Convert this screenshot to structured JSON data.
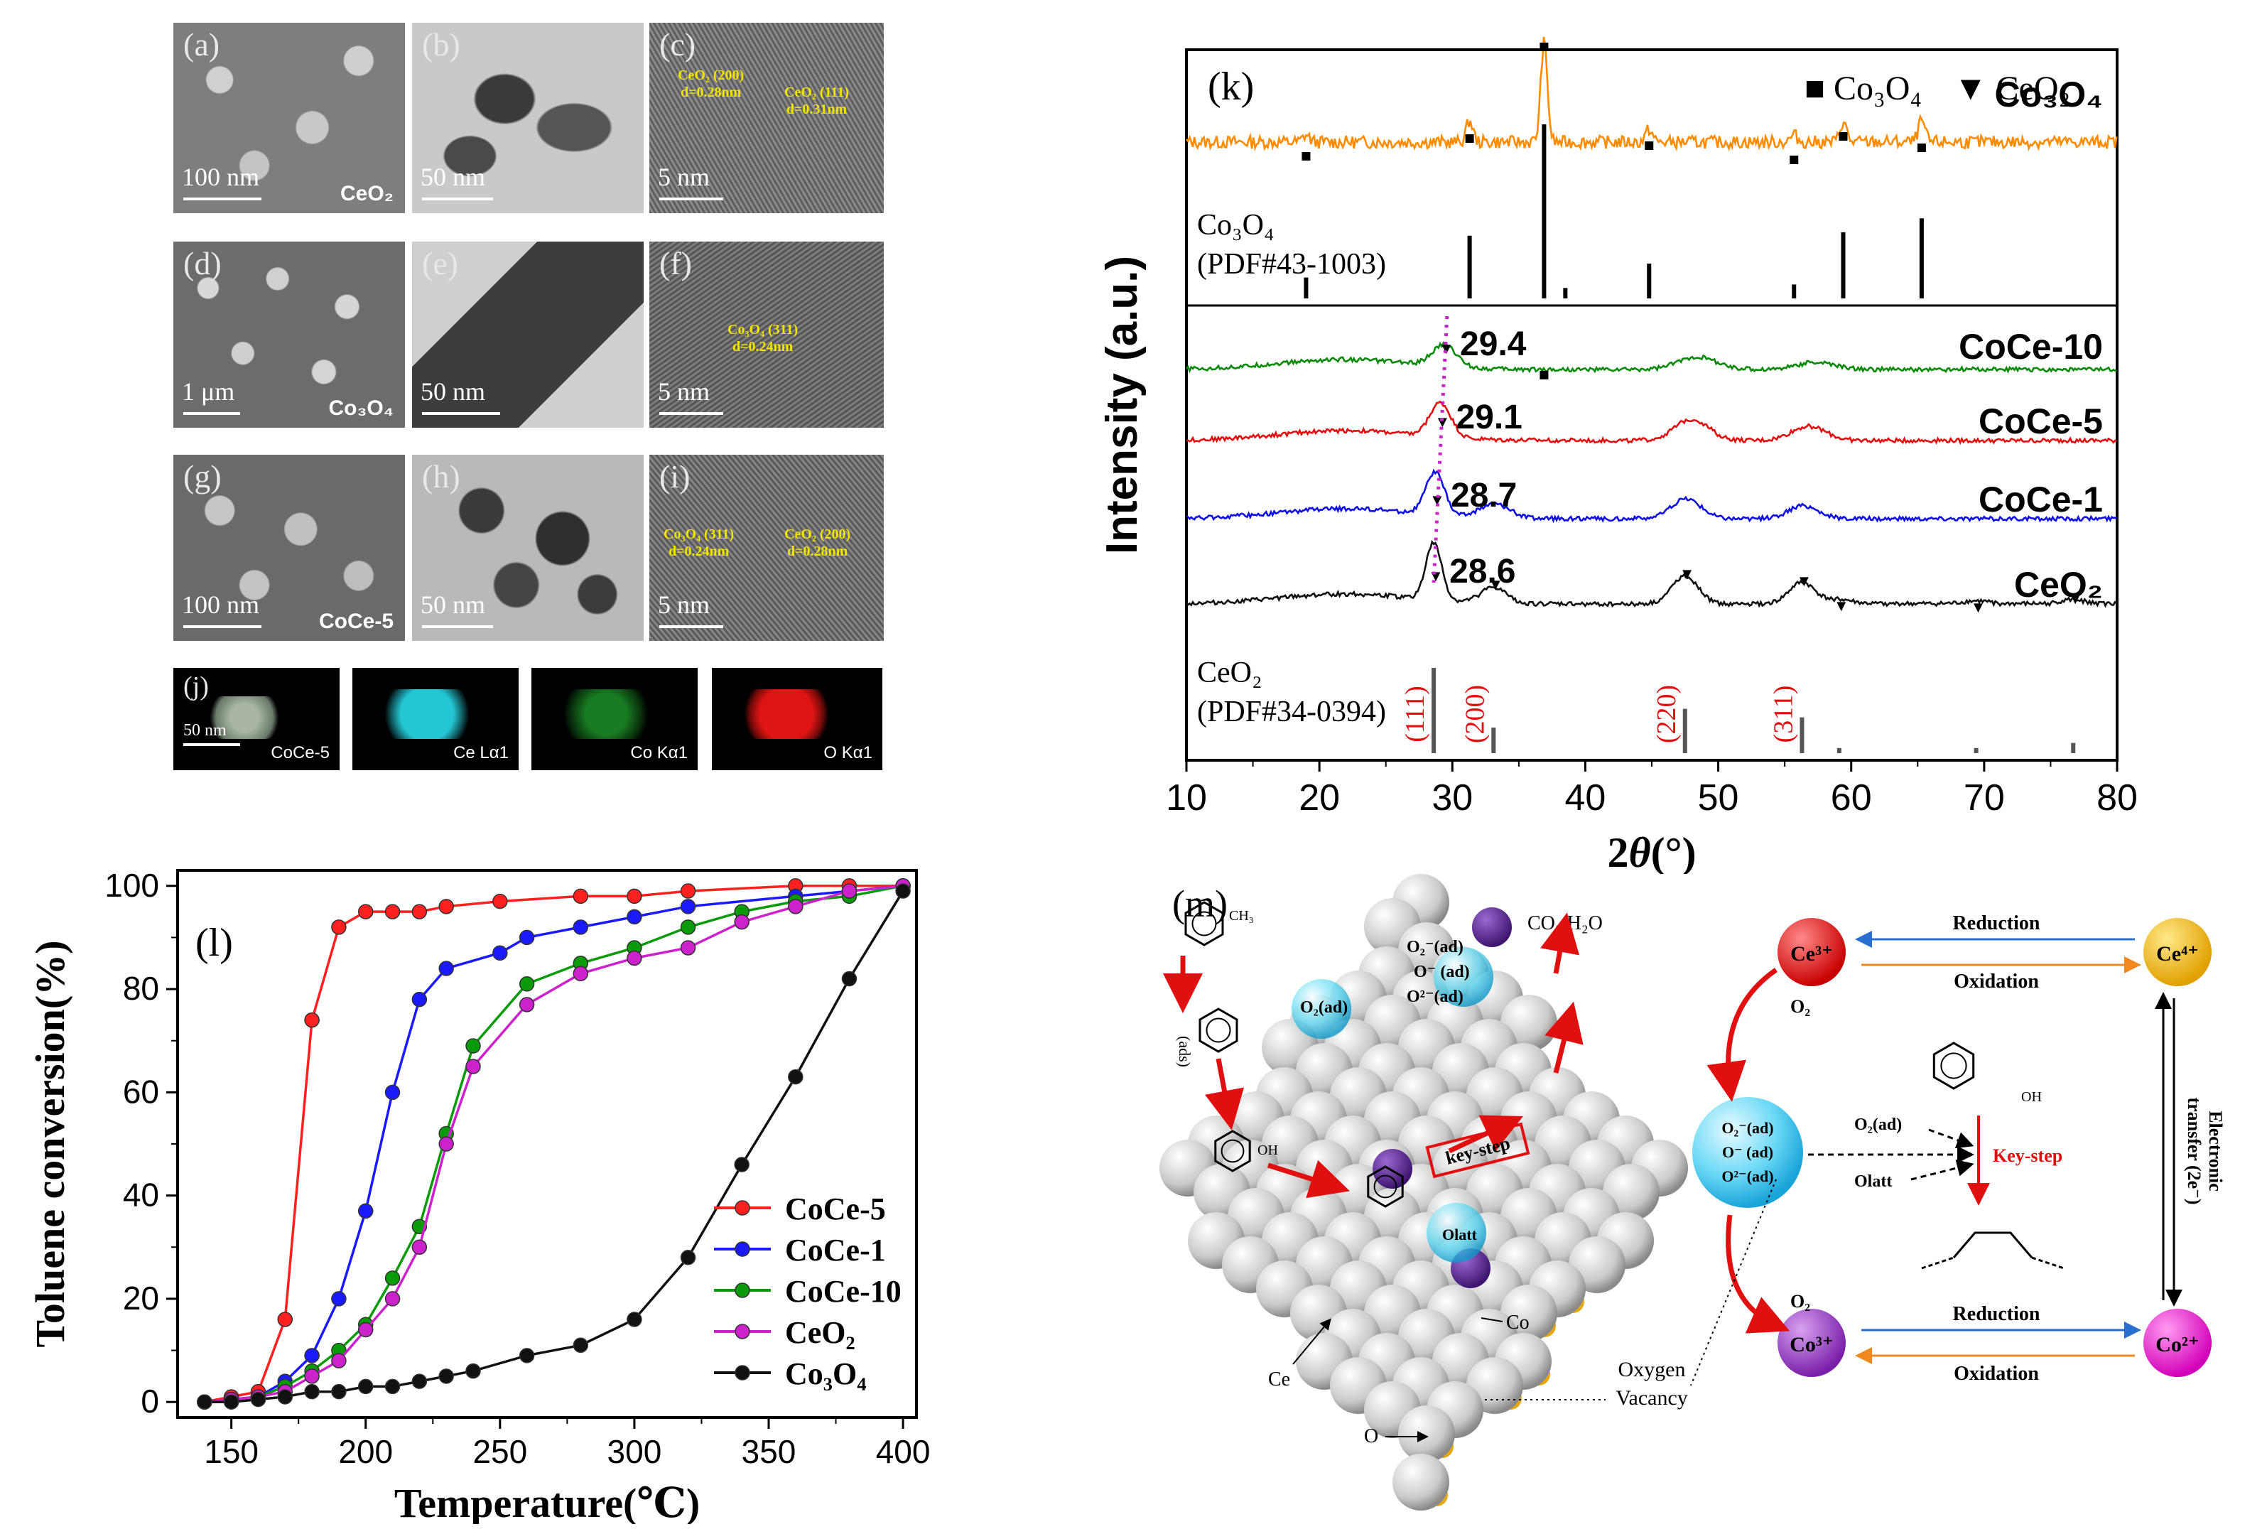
{
  "panels": {
    "tem": [
      {
        "label": "(a)",
        "scale": "100 nm",
        "sample": "CeO₂"
      },
      {
        "label": "(b)",
        "scale": "50 nm"
      },
      {
        "label": "(c)",
        "scale": "5 nm",
        "ann1": "CeO₂ (200)",
        "ann1d": "d=0.28nm",
        "ann2": "CeO₂ (111)",
        "ann2d": "d=0.31nm"
      },
      {
        "label": "(d)",
        "scale": "1 μm",
        "sample": "Co₃O₄"
      },
      {
        "label": "(e)",
        "scale": "50 nm"
      },
      {
        "label": "(f)",
        "scale": "5 nm",
        "ann1": "Co₃O₄ (311)",
        "ann1d": "d=0.24nm"
      },
      {
        "label": "(g)",
        "scale": "100 nm",
        "sample": "CoCe-5"
      },
      {
        "label": "(h)",
        "scale": "50 nm"
      },
      {
        "label": "(i)",
        "scale": "5 nm",
        "ann1": "Co₃O₄ (311)",
        "ann1d": "d=0.24nm",
        "ann2": "CeO₂ (200)",
        "ann2d": "d=0.28nm"
      }
    ],
    "eds": {
      "label": "(j)",
      "scale": "50 nm",
      "maps": [
        "CoCe-5",
        "Ce Lα1",
        "Co Kα1",
        "O Kα1"
      ],
      "colors": [
        "#8a9a88",
        "#24c6d2",
        "#1f9a2a",
        "#e01414"
      ]
    }
  },
  "xrd": {
    "label": "(k)",
    "ylabel": "Intensity (a.u.)",
    "xlabel": "2θ (°)",
    "xlabel_theta": "θ",
    "xlabel_unit": "(°)",
    "legend_co": "■ Co₃O₄",
    "legend_ce": "▼ CeO₂",
    "ref_co": "Co₃O₄",
    "ref_co_pdf": "(PDF#43-1003)",
    "ref_ce": "CeO₂",
    "ref_ce_pdf": "(PDF#34-0394)",
    "peaks_labels": [
      "29.4",
      "29.1",
      "28.7",
      "28.6"
    ],
    "hkl": [
      "(111)",
      "(200)",
      "(220)",
      "(311)"
    ]
  },
  "conversion_panel": {
    "label": "(l)"
  },
  "mechanism": {
    "label": "(m)",
    "products": "CO₂ H₂O",
    "ads": "(ads)",
    "species": [
      "O₂⁻(ad)",
      "O⁻ (ad)",
      "O²⁻(ad)"
    ],
    "o2ad": "O₂(ad)",
    "keystep": "key-step",
    "olatt": "Olatt",
    "ce": "Ce",
    "co": "Co",
    "o": "O",
    "vacancy1": "Oxygen",
    "vacancy2": "Vacancy",
    "cycle": {
      "ce3": "Ce³⁺",
      "ce4": "Ce⁴⁺",
      "co3": "Co³⁺",
      "co2": "Co²⁺",
      "reduction": "Reduction",
      "oxidation": "Oxidation",
      "o2": "O₂",
      "keystep": "Key-step",
      "o2ad": "O₂(ad)",
      "olatt": "Olatt",
      "transfer1": "Electronic",
      "transfer2": "transfer (2e⁻)",
      "sphere_species": [
        "O₂⁻(ad)",
        "O⁻ (ad)",
        "O²⁻(ad)"
      ]
    }
  },
  "chart_data": [
    {
      "type": "line",
      "title": "(k)",
      "xlabel": "2θ (°)",
      "ylabel": "Intensity (a.u.)",
      "xlim": [
        10,
        80
      ],
      "xticks": [
        10,
        20,
        30,
        40,
        50,
        60,
        70,
        80
      ],
      "series": [
        {
          "name": "Co₃O₄",
          "color": "#ff8c00",
          "peaks": [
            19.0,
            31.3,
            36.9,
            44.8,
            55.7,
            59.4,
            65.3
          ]
        },
        {
          "name": "CoCe-10",
          "color": "#0a8a0a",
          "peaks": [
            29.4,
            48.4,
            57.3
          ]
        },
        {
          "name": "CoCe-5",
          "color": "#e01010",
          "peaks": [
            29.1,
            48.0,
            56.8
          ]
        },
        {
          "name": "CoCe-1",
          "color": "#1010e0",
          "peaks": [
            28.7,
            33.2,
            47.6,
            56.4
          ]
        },
        {
          "name": "CeO₂",
          "color": "#111111",
          "peaks": [
            28.6,
            33.1,
            47.5,
            56.3,
            59.1,
            69.4,
            76.7
          ]
        }
      ],
      "reference_co3o4": [
        [
          19.0,
          0.12
        ],
        [
          31.3,
          0.36
        ],
        [
          36.9,
          1.0
        ],
        [
          38.5,
          0.06
        ],
        [
          44.8,
          0.2
        ],
        [
          55.7,
          0.08
        ],
        [
          59.4,
          0.38
        ],
        [
          65.3,
          0.46
        ]
      ],
      "reference_ceo2": [
        [
          28.6,
          1.0
        ],
        [
          33.1,
          0.3
        ],
        [
          47.5,
          0.52
        ],
        [
          56.3,
          0.42
        ],
        [
          59.1,
          0.06
        ],
        [
          69.4,
          0.06
        ],
        [
          76.7,
          0.12
        ]
      ]
    },
    {
      "type": "line",
      "title": "(l)",
      "xlabel": "Temperature(℃)",
      "ylabel": "Toluene conversion(%)",
      "xlim": [
        130,
        405
      ],
      "ylim": [
        -3,
        103
      ],
      "xticks": [
        150,
        200,
        250,
        300,
        350,
        400
      ],
      "yticks": [
        0,
        20,
        40,
        60,
        80,
        100
      ],
      "legend": "center-right",
      "series": [
        {
          "name": "CoCe-5",
          "color": "#ff2020",
          "points": [
            [
              140,
              0
            ],
            [
              150,
              1
            ],
            [
              160,
              2
            ],
            [
              170,
              16
            ],
            [
              180,
              74
            ],
            [
              190,
              92
            ],
            [
              200,
              95
            ],
            [
              210,
              95
            ],
            [
              220,
              95
            ],
            [
              230,
              96
            ],
            [
              250,
              97
            ],
            [
              280,
              98
            ],
            [
              300,
              98
            ],
            [
              320,
              99
            ],
            [
              360,
              100
            ],
            [
              380,
              100
            ],
            [
              400,
              100
            ]
          ]
        },
        {
          "name": "CoCe-1",
          "color": "#1a1aff",
          "points": [
            [
              140,
              0
            ],
            [
              150,
              0.5
            ],
            [
              160,
              1
            ],
            [
              170,
              4
            ],
            [
              180,
              9
            ],
            [
              190,
              20
            ],
            [
              200,
              37
            ],
            [
              210,
              60
            ],
            [
              220,
              78
            ],
            [
              230,
              84
            ],
            [
              250,
              87
            ],
            [
              260,
              90
            ],
            [
              280,
              92
            ],
            [
              300,
              94
            ],
            [
              320,
              96
            ],
            [
              360,
              98
            ],
            [
              380,
              99
            ],
            [
              400,
              100
            ]
          ]
        },
        {
          "name": "CoCe-10",
          "color": "#0a9a0a",
          "points": [
            [
              140,
              0
            ],
            [
              150,
              0.5
            ],
            [
              160,
              1
            ],
            [
              170,
              3
            ],
            [
              180,
              6
            ],
            [
              190,
              10
            ],
            [
              200,
              15
            ],
            [
              210,
              24
            ],
            [
              220,
              34
            ],
            [
              230,
              52
            ],
            [
              240,
              69
            ],
            [
              260,
              81
            ],
            [
              280,
              85
            ],
            [
              300,
              88
            ],
            [
              320,
              92
            ],
            [
              340,
              95
            ],
            [
              360,
              97
            ],
            [
              380,
              98
            ],
            [
              400,
              100
            ]
          ]
        },
        {
          "name": "CeO₂",
          "color": "#cc22cc",
          "points": [
            [
              140,
              0
            ],
            [
              150,
              0.5
            ],
            [
              160,
              1
            ],
            [
              170,
              2
            ],
            [
              180,
              5
            ],
            [
              190,
              8
            ],
            [
              200,
              14
            ],
            [
              210,
              20
            ],
            [
              220,
              30
            ],
            [
              230,
              50
            ],
            [
              240,
              65
            ],
            [
              260,
              77
            ],
            [
              280,
              83
            ],
            [
              300,
              86
            ],
            [
              320,
              88
            ],
            [
              340,
              93
            ],
            [
              360,
              96
            ],
            [
              380,
              99
            ],
            [
              400,
              100
            ]
          ]
        },
        {
          "name": "Co₃O₄",
          "color": "#111111",
          "points": [
            [
              140,
              0
            ],
            [
              150,
              0
            ],
            [
              160,
              0.5
            ],
            [
              170,
              1
            ],
            [
              180,
              2
            ],
            [
              190,
              2
            ],
            [
              200,
              3
            ],
            [
              210,
              3
            ],
            [
              220,
              4
            ],
            [
              230,
              5
            ],
            [
              240,
              6
            ],
            [
              260,
              9
            ],
            [
              280,
              11
            ],
            [
              300,
              16
            ],
            [
              320,
              28
            ],
            [
              340,
              46
            ],
            [
              360,
              63
            ],
            [
              380,
              82
            ],
            [
              400,
              99
            ]
          ]
        }
      ]
    }
  ]
}
